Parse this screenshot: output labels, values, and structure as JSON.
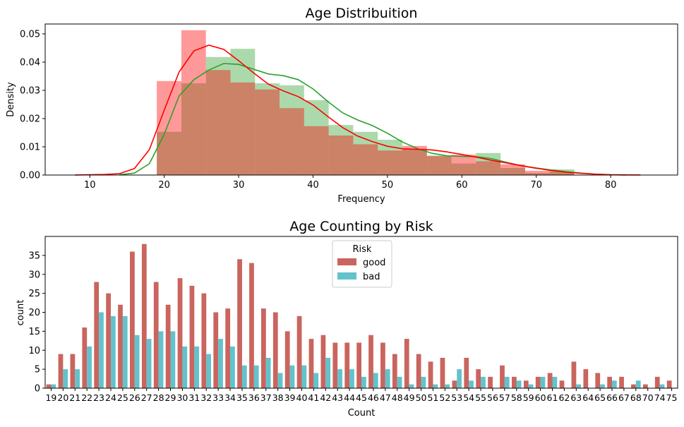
{
  "chart_data": [
    {
      "type": "histogram-kde",
      "title": "Age Distribuition",
      "xlabel": "Frequency",
      "ylabel": "Density",
      "xlim": [
        4,
        89
      ],
      "ylim": [
        0,
        0.0535
      ],
      "xticks": [
        10,
        20,
        30,
        40,
        50,
        60,
        70,
        80
      ],
      "yticks": [
        0.0,
        0.01,
        0.02,
        0.03,
        0.04,
        0.05
      ],
      "ytick_labels": [
        "0.00",
        "0.01",
        "0.02",
        "0.03",
        "0.04",
        "0.05"
      ],
      "series": [
        {
          "name": "bad",
          "color": "#2ca02c",
          "hist_edges": [
            19,
            22.3,
            25.6,
            28.9,
            32.2,
            35.5,
            38.8,
            42.1,
            45.4,
            48.7,
            52,
            55.3,
            58.6,
            61.9,
            65.2,
            68.5,
            71.8,
            75.1
          ],
          "hist_density": [
            0.0153,
            0.0325,
            0.0418,
            0.0447,
            0.0325,
            0.0318,
            0.0265,
            0.0177,
            0.0153,
            0.0125,
            0.0092,
            0.0069,
            0.0041,
            0.0078,
            0.0025,
            0.0007,
            0.002
          ],
          "kde": [
            [
              14,
              0.0001
            ],
            [
              16,
              0.0007
            ],
            [
              18,
              0.004
            ],
            [
              20,
              0.0145
            ],
            [
              22,
              0.028
            ],
            [
              24,
              0.0338
            ],
            [
              26,
              0.0372
            ],
            [
              28,
              0.0395
            ],
            [
              30,
              0.0392
            ],
            [
              32,
              0.0375
            ],
            [
              34,
              0.0358
            ],
            [
              36,
              0.0352
            ],
            [
              38,
              0.0338
            ],
            [
              40,
              0.0305
            ],
            [
              42,
              0.026
            ],
            [
              44,
              0.022
            ],
            [
              46,
              0.0195
            ],
            [
              48,
              0.0175
            ],
            [
              50,
              0.0148
            ],
            [
              52,
              0.0117
            ],
            [
              54,
              0.0094
            ],
            [
              56,
              0.0077
            ],
            [
              58,
              0.0068
            ],
            [
              60,
              0.0066
            ],
            [
              62,
              0.0065
            ],
            [
              64,
              0.0058
            ],
            [
              66,
              0.0045
            ],
            [
              68,
              0.0033
            ],
            [
              70,
              0.0025
            ],
            [
              72,
              0.0018
            ],
            [
              74,
              0.0012
            ],
            [
              76,
              0.0007
            ],
            [
              78,
              0.0003
            ],
            [
              80,
              0.0001
            ],
            [
              82,
              3e-05
            ]
          ]
        },
        {
          "name": "good",
          "color": "#ff0000",
          "hist_edges": [
            19,
            22.3,
            25.6,
            28.9,
            32.2,
            35.5,
            38.8,
            42.1,
            45.4,
            48.7,
            52,
            55.3,
            58.6,
            61.9,
            65.2,
            68.5,
            71.8,
            75.1
          ],
          "hist_density": [
            0.0333,
            0.0513,
            0.0372,
            0.0328,
            0.0303,
            0.0237,
            0.0173,
            0.014,
            0.0109,
            0.0087,
            0.0103,
            0.0067,
            0.0072,
            0.0049,
            0.0038,
            0.0015,
            0.0012
          ],
          "kde": [
            [
              8,
              3e-05
            ],
            [
              10,
              0.0001
            ],
            [
              12,
              0.0002
            ],
            [
              14,
              0.0005
            ],
            [
              16,
              0.0023
            ],
            [
              18,
              0.009
            ],
            [
              20,
              0.023
            ],
            [
              22,
              0.0365
            ],
            [
              24,
              0.044
            ],
            [
              26,
              0.046
            ],
            [
              28,
              0.0445
            ],
            [
              30,
              0.0405
            ],
            [
              32,
              0.0362
            ],
            [
              34,
              0.0322
            ],
            [
              36,
              0.0298
            ],
            [
              38,
              0.0278
            ],
            [
              40,
              0.0248
            ],
            [
              42,
              0.0207
            ],
            [
              44,
              0.0168
            ],
            [
              46,
              0.0138
            ],
            [
              48,
              0.0118
            ],
            [
              50,
              0.0102
            ],
            [
              52,
              0.0093
            ],
            [
              54,
              0.0091
            ],
            [
              56,
              0.0089
            ],
            [
              58,
              0.0082
            ],
            [
              60,
              0.0073
            ],
            [
              62,
              0.0063
            ],
            [
              64,
              0.0052
            ],
            [
              66,
              0.0043
            ],
            [
              68,
              0.0033
            ],
            [
              70,
              0.0024
            ],
            [
              72,
              0.0016
            ],
            [
              74,
              0.001
            ],
            [
              76,
              0.0006
            ],
            [
              78,
              0.0003
            ],
            [
              80,
              0.0001
            ],
            [
              82,
              5e-05
            ],
            [
              84,
              2e-05
            ]
          ]
        }
      ]
    },
    {
      "type": "bar",
      "title": "Age Counting by Risk",
      "xlabel": "Count",
      "ylabel": "count",
      "ylim": [
        0,
        40
      ],
      "yticks": [
        0,
        5,
        10,
        15,
        20,
        25,
        30,
        35
      ],
      "legend": {
        "title": "Risk",
        "placement": "top-center"
      },
      "categories": [
        "19",
        "20",
        "21",
        "22",
        "23",
        "24",
        "25",
        "26",
        "27",
        "28",
        "29",
        "30",
        "31",
        "32",
        "33",
        "34",
        "35",
        "36",
        "37",
        "38",
        "39",
        "40",
        "41",
        "42",
        "43",
        "44",
        "45",
        "46",
        "47",
        "48",
        "49",
        "50",
        "51",
        "52",
        "53",
        "54",
        "55",
        "56",
        "57",
        "58",
        "59",
        "60",
        "61",
        "62",
        "63",
        "64",
        "65",
        "66",
        "67",
        "68",
        "70",
        "74",
        "75"
      ],
      "series": [
        {
          "name": "good",
          "color": "#c9655e",
          "values": [
            1,
            9,
            9,
            16,
            28,
            25,
            22,
            36,
            38,
            28,
            22,
            29,
            27,
            25,
            20,
            21,
            34,
            33,
            21,
            20,
            15,
            19,
            13,
            14,
            12,
            12,
            12,
            14,
            12,
            9,
            13,
            9,
            7,
            8,
            2,
            8,
            5,
            3,
            6,
            3,
            2,
            3,
            4,
            2,
            7,
            5,
            4,
            3,
            3,
            1,
            1,
            3,
            2
          ]
        },
        {
          "name": "bad",
          "color": "#63c2cb",
          "values": [
            1,
            5,
            5,
            11,
            20,
            19,
            19,
            14,
            13,
            15,
            15,
            11,
            11,
            9,
            13,
            11,
            6,
            6,
            8,
            4,
            6,
            6,
            4,
            8,
            5,
            5,
            3,
            4,
            5,
            3,
            1,
            3,
            1,
            1,
            5,
            2,
            3,
            0,
            3,
            2,
            1,
            3,
            3,
            0,
            1,
            0,
            1,
            2,
            0,
            2,
            0,
            1,
            0
          ]
        }
      ]
    }
  ]
}
